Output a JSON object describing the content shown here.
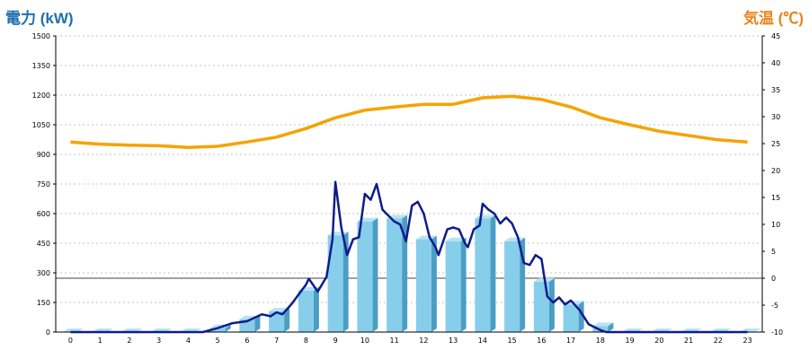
{
  "colors": {
    "left_title": "#1e6fb0",
    "right_title": "#e8861a",
    "bar_front": "#87ceeb",
    "bar_side": "#4a9ec4",
    "bar_top": "#b7e3f5",
    "power_line": "#101b8c",
    "temp_line": "#f5a300",
    "grid": "#b0b0b0",
    "zero_line": "#000000"
  },
  "chart_data": {
    "type": "bar+line",
    "left_axis": {
      "title": "電力 (kW)",
      "ylim": [
        0,
        1500
      ],
      "ticks": [
        "0",
        "150",
        "300",
        "450",
        "600",
        "750",
        "900",
        "1050",
        "1200",
        "1350",
        "1500"
      ]
    },
    "right_axis": {
      "title": "気温 (℃)",
      "ylim": [
        -10,
        45
      ],
      "ticks": [
        "-10",
        "-5",
        "0",
        "5",
        "10",
        "15",
        "20",
        "25",
        "30",
        "35",
        "40",
        "45"
      ]
    },
    "categories": [
      "0",
      "1",
      "2",
      "3",
      "4",
      "5",
      "6",
      "7",
      "8",
      "9",
      "10",
      "11",
      "12",
      "13",
      "14",
      "15",
      "16",
      "17",
      "18",
      "19",
      "20",
      "21",
      "22",
      "23"
    ],
    "grid": true,
    "zero_reference_line": 0,
    "hourly_power_bars": [
      0,
      0,
      0,
      0,
      0,
      20,
      65,
      105,
      210,
      490,
      560,
      575,
      470,
      460,
      575,
      460,
      255,
      140,
      30,
      0,
      0,
      0,
      0,
      0
    ],
    "power_line": [
      {
        "x": 0,
        "y": 0
      },
      {
        "x": 4.5,
        "y": 0
      },
      {
        "x": 5.0,
        "y": 20
      },
      {
        "x": 5.5,
        "y": 45
      },
      {
        "x": 6.0,
        "y": 55
      },
      {
        "x": 6.5,
        "y": 90
      },
      {
        "x": 6.8,
        "y": 80
      },
      {
        "x": 7.0,
        "y": 100
      },
      {
        "x": 7.2,
        "y": 90
      },
      {
        "x": 7.5,
        "y": 140
      },
      {
        "x": 7.8,
        "y": 200
      },
      {
        "x": 8.0,
        "y": 240
      },
      {
        "x": 8.1,
        "y": 270
      },
      {
        "x": 8.4,
        "y": 205
      },
      {
        "x": 8.7,
        "y": 280
      },
      {
        "x": 8.9,
        "y": 470
      },
      {
        "x": 9.0,
        "y": 760
      },
      {
        "x": 9.2,
        "y": 530
      },
      {
        "x": 9.4,
        "y": 390
      },
      {
        "x": 9.6,
        "y": 470
      },
      {
        "x": 9.8,
        "y": 480
      },
      {
        "x": 10.0,
        "y": 700
      },
      {
        "x": 10.2,
        "y": 670
      },
      {
        "x": 10.4,
        "y": 750
      },
      {
        "x": 10.6,
        "y": 620
      },
      {
        "x": 10.8,
        "y": 590
      },
      {
        "x": 11.0,
        "y": 560
      },
      {
        "x": 11.2,
        "y": 545
      },
      {
        "x": 11.4,
        "y": 460
      },
      {
        "x": 11.6,
        "y": 640
      },
      {
        "x": 11.8,
        "y": 660
      },
      {
        "x": 12.0,
        "y": 600
      },
      {
        "x": 12.2,
        "y": 480
      },
      {
        "x": 12.4,
        "y": 430
      },
      {
        "x": 12.5,
        "y": 390
      },
      {
        "x": 12.8,
        "y": 520
      },
      {
        "x": 13.0,
        "y": 530
      },
      {
        "x": 13.2,
        "y": 520
      },
      {
        "x": 13.4,
        "y": 450
      },
      {
        "x": 13.5,
        "y": 430
      },
      {
        "x": 13.7,
        "y": 520
      },
      {
        "x": 13.9,
        "y": 540
      },
      {
        "x": 14.0,
        "y": 650
      },
      {
        "x": 14.2,
        "y": 620
      },
      {
        "x": 14.4,
        "y": 600
      },
      {
        "x": 14.6,
        "y": 550
      },
      {
        "x": 14.8,
        "y": 580
      },
      {
        "x": 15.0,
        "y": 550
      },
      {
        "x": 15.2,
        "y": 480
      },
      {
        "x": 15.4,
        "y": 350
      },
      {
        "x": 15.6,
        "y": 340
      },
      {
        "x": 15.8,
        "y": 390
      },
      {
        "x": 16.0,
        "y": 370
      },
      {
        "x": 16.2,
        "y": 180
      },
      {
        "x": 16.4,
        "y": 150
      },
      {
        "x": 16.6,
        "y": 175
      },
      {
        "x": 16.8,
        "y": 140
      },
      {
        "x": 17.0,
        "y": 160
      },
      {
        "x": 17.3,
        "y": 110
      },
      {
        "x": 17.6,
        "y": 40
      },
      {
        "x": 18.0,
        "y": 10
      },
      {
        "x": 18.2,
        "y": 0
      },
      {
        "x": 23,
        "y": 0
      }
    ],
    "temperature_line": [
      {
        "x": 0,
        "y": 25.3
      },
      {
        "x": 1,
        "y": 24.9
      },
      {
        "x": 2,
        "y": 24.7
      },
      {
        "x": 3,
        "y": 24.6
      },
      {
        "x": 4,
        "y": 24.3
      },
      {
        "x": 5,
        "y": 24.5
      },
      {
        "x": 6,
        "y": 25.3
      },
      {
        "x": 7,
        "y": 26.2
      },
      {
        "x": 8,
        "y": 27.8
      },
      {
        "x": 9,
        "y": 29.8
      },
      {
        "x": 10,
        "y": 31.2
      },
      {
        "x": 11,
        "y": 31.8
      },
      {
        "x": 12,
        "y": 32.3
      },
      {
        "x": 13,
        "y": 32.3
      },
      {
        "x": 14,
        "y": 33.5
      },
      {
        "x": 15,
        "y": 33.8
      },
      {
        "x": 16,
        "y": 33.2
      },
      {
        "x": 17,
        "y": 31.8
      },
      {
        "x": 18,
        "y": 29.8
      },
      {
        "x": 19,
        "y": 28.5
      },
      {
        "x": 20,
        "y": 27.3
      },
      {
        "x": 21,
        "y": 26.5
      },
      {
        "x": 22,
        "y": 25.7
      },
      {
        "x": 23,
        "y": 25.3
      }
    ]
  }
}
